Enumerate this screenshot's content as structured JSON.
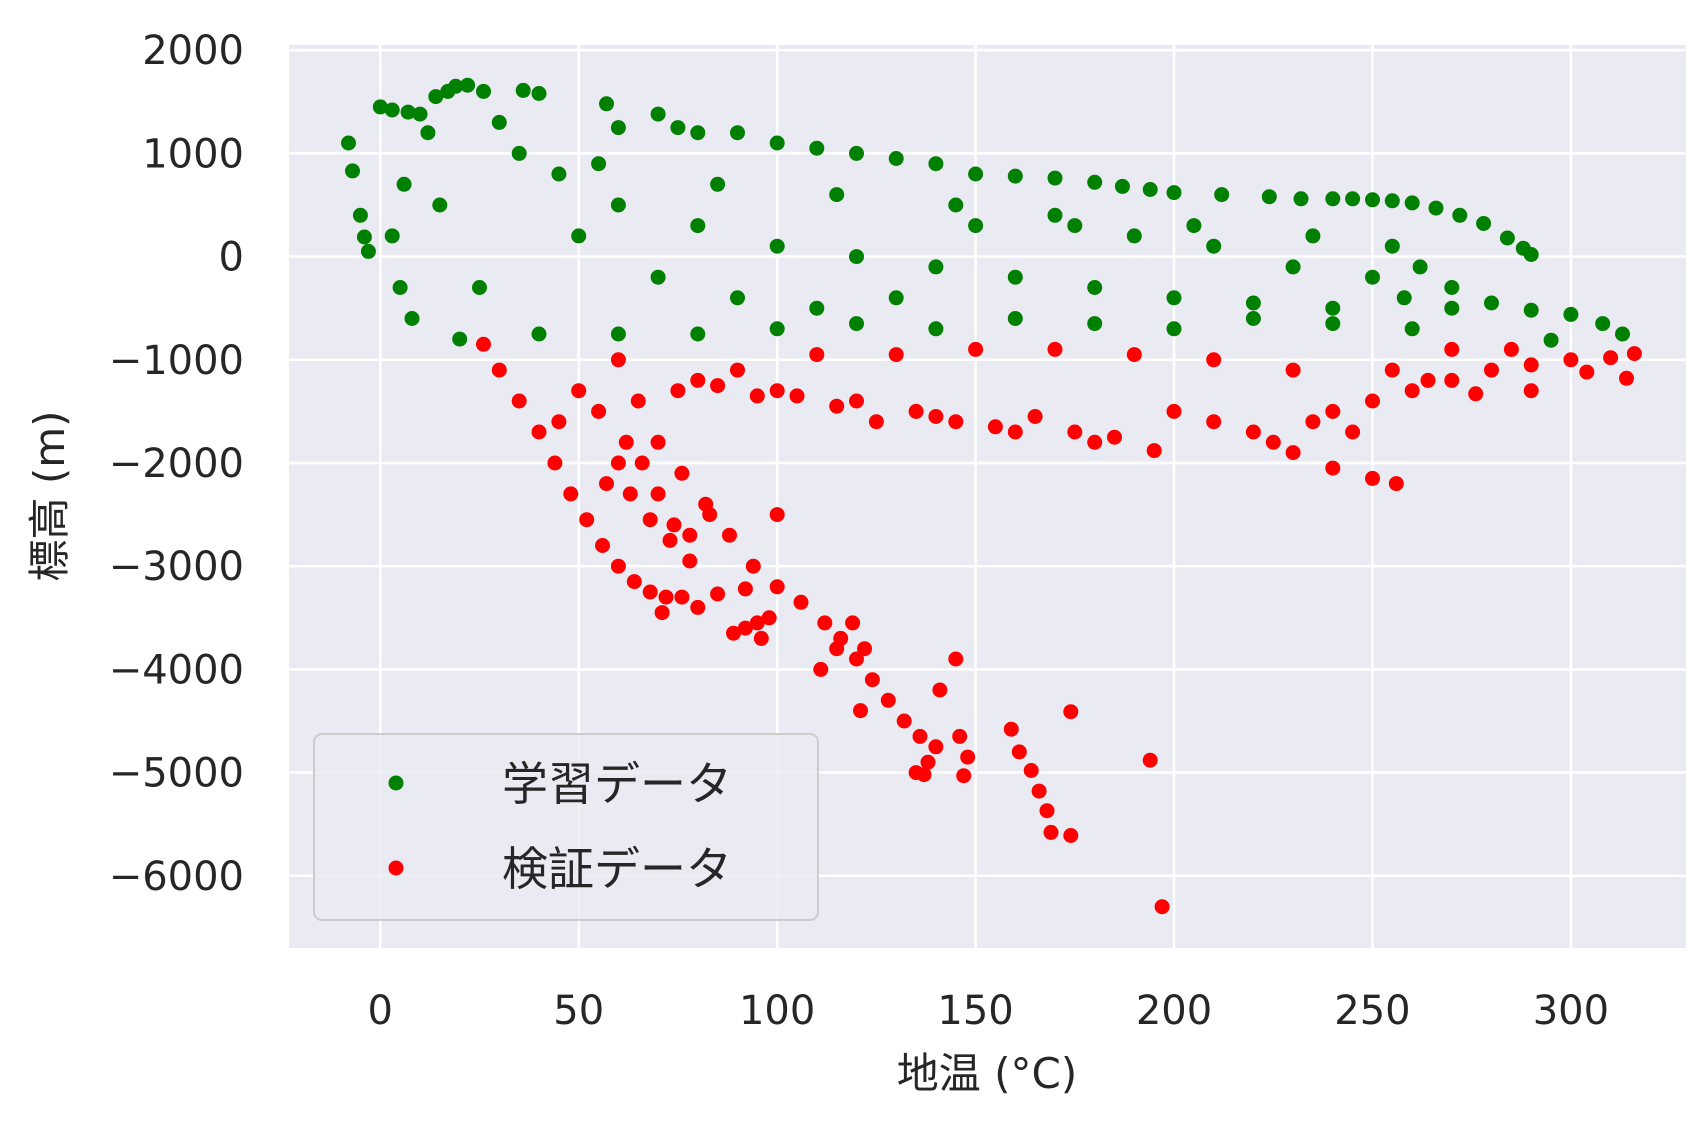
{
  "chart_data": {
    "type": "scatter",
    "title": "",
    "xlabel": "地温 (°C)",
    "ylabel": "標高 (m)",
    "xlim": [
      -23,
      329
    ],
    "ylim": [
      -6700,
      2050
    ],
    "xticks": [
      0,
      50,
      100,
      150,
      200,
      250,
      300
    ],
    "yticks": [
      2000,
      1000,
      0,
      -1000,
      -2000,
      -3000,
      -4000,
      -5000,
      -6000
    ],
    "ytick_labels": [
      "2000",
      "1000",
      "0",
      "−1000",
      "−2000",
      "−3000",
      "−4000",
      "−5000",
      "−6000"
    ],
    "grid": true,
    "background": "#eaeaf2",
    "legend_placement": "lower-left",
    "series": [
      {
        "name": "学習データ",
        "color": "#008000",
        "points": [
          [
            -8,
            1100
          ],
          [
            -7,
            830
          ],
          [
            -5,
            400
          ],
          [
            -4,
            190
          ],
          [
            -3,
            50
          ],
          [
            0,
            1450
          ],
          [
            3,
            1420
          ],
          [
            7,
            1400
          ],
          [
            10,
            1380
          ],
          [
            14,
            1550
          ],
          [
            17,
            1600
          ],
          [
            19,
            1650
          ],
          [
            22,
            1660
          ],
          [
            26,
            1600
          ],
          [
            36,
            1610
          ],
          [
            40,
            1580
          ],
          [
            57,
            1480
          ],
          [
            60,
            1250
          ],
          [
            70,
            1380
          ],
          [
            75,
            1250
          ],
          [
            80,
            1200
          ],
          [
            90,
            1200
          ],
          [
            100,
            1100
          ],
          [
            110,
            1050
          ],
          [
            120,
            1000
          ],
          [
            130,
            950
          ],
          [
            140,
            900
          ],
          [
            150,
            800
          ],
          [
            160,
            780
          ],
          [
            170,
            760
          ],
          [
            180,
            720
          ],
          [
            187,
            680
          ],
          [
            194,
            650
          ],
          [
            200,
            620
          ],
          [
            212,
            600
          ],
          [
            224,
            580
          ],
          [
            232,
            560
          ],
          [
            240,
            560
          ],
          [
            245,
            560
          ],
          [
            250,
            550
          ],
          [
            255,
            540
          ],
          [
            260,
            520
          ],
          [
            266,
            470
          ],
          [
            272,
            400
          ],
          [
            278,
            320
          ],
          [
            284,
            180
          ],
          [
            288,
            80
          ],
          [
            290,
            20
          ],
          [
            262,
            -100
          ],
          [
            258,
            -400
          ],
          [
            270,
            -500
          ],
          [
            280,
            -450
          ],
          [
            290,
            -520
          ],
          [
            300,
            -560
          ],
          [
            308,
            -650
          ],
          [
            313,
            -750
          ],
          [
            295,
            -810
          ],
          [
            260,
            -700
          ],
          [
            240,
            -650
          ],
          [
            220,
            -600
          ],
          [
            200,
            -700
          ],
          [
            180,
            -650
          ],
          [
            160,
            -600
          ],
          [
            140,
            -700
          ],
          [
            120,
            -650
          ],
          [
            100,
            -700
          ],
          [
            80,
            -750
          ],
          [
            60,
            -750
          ],
          [
            40,
            -750
          ],
          [
            20,
            -800
          ],
          [
            8,
            -600
          ],
          [
            5,
            -300
          ],
          [
            3,
            200
          ],
          [
            6,
            700
          ],
          [
            12,
            1200
          ],
          [
            30,
            1300
          ],
          [
            45,
            800
          ],
          [
            60,
            500
          ],
          [
            80,
            300
          ],
          [
            100,
            100
          ],
          [
            120,
            0
          ],
          [
            140,
            -100
          ],
          [
            160,
            -200
          ],
          [
            180,
            -300
          ],
          [
            200,
            -400
          ],
          [
            220,
            -450
          ],
          [
            240,
            -500
          ],
          [
            35,
            1000
          ],
          [
            50,
            200
          ],
          [
            70,
            -200
          ],
          [
            90,
            -400
          ],
          [
            110,
            -500
          ],
          [
            130,
            -400
          ],
          [
            150,
            300
          ],
          [
            170,
            400
          ],
          [
            190,
            200
          ],
          [
            210,
            100
          ],
          [
            230,
            -100
          ],
          [
            250,
            -200
          ],
          [
            270,
            -300
          ],
          [
            25,
            -300
          ],
          [
            15,
            500
          ],
          [
            55,
            900
          ],
          [
            85,
            700
          ],
          [
            115,
            600
          ],
          [
            145,
            500
          ],
          [
            175,
            300
          ],
          [
            205,
            300
          ],
          [
            235,
            200
          ],
          [
            255,
            100
          ]
        ]
      },
      {
        "name": "検証データ",
        "color": "#ff0000",
        "points": [
          [
            26,
            -850
          ],
          [
            30,
            -1100
          ],
          [
            35,
            -1400
          ],
          [
            40,
            -1700
          ],
          [
            44,
            -2000
          ],
          [
            48,
            -2300
          ],
          [
            52,
            -2550
          ],
          [
            56,
            -2800
          ],
          [
            60,
            -3000
          ],
          [
            64,
            -3150
          ],
          [
            68,
            -3250
          ],
          [
            72,
            -3300
          ],
          [
            76,
            -3300
          ],
          [
            80,
            -3400
          ],
          [
            71,
            -3450
          ],
          [
            85,
            -3270
          ],
          [
            78,
            -2950
          ],
          [
            74,
            -2600
          ],
          [
            70,
            -2300
          ],
          [
            66,
            -2000
          ],
          [
            62,
            -1800
          ],
          [
            70,
            -1800
          ],
          [
            76,
            -2100
          ],
          [
            82,
            -2400
          ],
          [
            88,
            -2700
          ],
          [
            94,
            -3000
          ],
          [
            100,
            -3200
          ],
          [
            106,
            -3350
          ],
          [
            112,
            -3550
          ],
          [
            116,
            -3700
          ],
          [
            120,
            -3900
          ],
          [
            124,
            -4100
          ],
          [
            128,
            -4300
          ],
          [
            132,
            -4500
          ],
          [
            136,
            -4650
          ],
          [
            140,
            -4750
          ],
          [
            119,
            -3550
          ],
          [
            122,
            -3800
          ],
          [
            115,
            -3800
          ],
          [
            111,
            -4000
          ],
          [
            121,
            -4400
          ],
          [
            100,
            -2500
          ],
          [
            92,
            -3220
          ],
          [
            95,
            -3550
          ],
          [
            98,
            -3500
          ],
          [
            92,
            -3600
          ],
          [
            89,
            -3650
          ],
          [
            96,
            -3700
          ],
          [
            141,
            -4200
          ],
          [
            145,
            -3900
          ],
          [
            146,
            -4650
          ],
          [
            148,
            -4850
          ],
          [
            147,
            -5030
          ],
          [
            138,
            -4900
          ],
          [
            135,
            -5000
          ],
          [
            137,
            -5020
          ],
          [
            159,
            -4580
          ],
          [
            161,
            -4800
          ],
          [
            164,
            -4980
          ],
          [
            166,
            -5180
          ],
          [
            168,
            -5370
          ],
          [
            169,
            -5580
          ],
          [
            174,
            -5610
          ],
          [
            174,
            -4410
          ],
          [
            194,
            -4880
          ],
          [
            197,
            -6300
          ],
          [
            60,
            -1000
          ],
          [
            80,
            -1200
          ],
          [
            100,
            -1300
          ],
          [
            120,
            -1400
          ],
          [
            140,
            -1550
          ],
          [
            160,
            -1700
          ],
          [
            180,
            -1800
          ],
          [
            195,
            -1880
          ],
          [
            200,
            -1500
          ],
          [
            210,
            -1600
          ],
          [
            220,
            -1700
          ],
          [
            230,
            -1900
          ],
          [
            240,
            -2050
          ],
          [
            250,
            -2150
          ],
          [
            256,
            -2200
          ],
          [
            240,
            -1500
          ],
          [
            250,
            -1400
          ],
          [
            260,
            -1300
          ],
          [
            270,
            -1200
          ],
          [
            280,
            -1100
          ],
          [
            290,
            -1050
          ],
          [
            300,
            -1000
          ],
          [
            310,
            -980
          ],
          [
            316,
            -940
          ],
          [
            314,
            -1180
          ],
          [
            304,
            -1120
          ],
          [
            290,
            -1300
          ],
          [
            276,
            -1330
          ],
          [
            264,
            -1200
          ],
          [
            230,
            -1100
          ],
          [
            210,
            -1000
          ],
          [
            190,
            -950
          ],
          [
            170,
            -900
          ],
          [
            150,
            -900
          ],
          [
            130,
            -950
          ],
          [
            110,
            -950
          ],
          [
            90,
            -1100
          ],
          [
            50,
            -1300
          ],
          [
            45,
            -1600
          ],
          [
            55,
            -1500
          ],
          [
            65,
            -1400
          ],
          [
            75,
            -1300
          ],
          [
            85,
            -1250
          ],
          [
            95,
            -1350
          ],
          [
            105,
            -1350
          ],
          [
            115,
            -1450
          ],
          [
            125,
            -1600
          ],
          [
            135,
            -1500
          ],
          [
            145,
            -1600
          ],
          [
            155,
            -1650
          ],
          [
            165,
            -1550
          ],
          [
            175,
            -1700
          ],
          [
            185,
            -1750
          ],
          [
            225,
            -1800
          ],
          [
            235,
            -1600
          ],
          [
            245,
            -1700
          ],
          [
            255,
            -1100
          ],
          [
            270,
            -900
          ],
          [
            285,
            -900
          ],
          [
            60,
            -2000
          ],
          [
            57,
            -2200
          ],
          [
            63,
            -2300
          ],
          [
            68,
            -2550
          ],
          [
            73,
            -2750
          ],
          [
            78,
            -2700
          ],
          [
            83,
            -2500
          ]
        ]
      }
    ]
  }
}
